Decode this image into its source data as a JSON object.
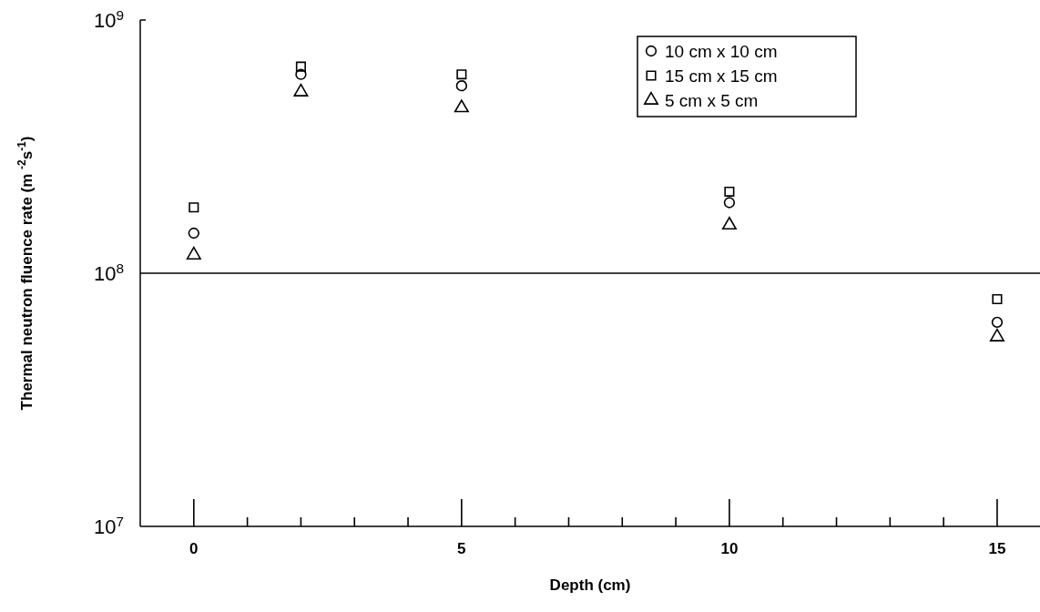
{
  "chart_data": {
    "type": "scatter",
    "xlabel": "Depth (cm)",
    "ylabel": "Thermal neutron fluence rate (m $^{-2}$s$^{-1}$)",
    "x": [
      0,
      2,
      5,
      10,
      15
    ],
    "series": [
      {
        "name": "10 cm x 10 cm",
        "color": "#000000",
        "marker": "circle",
        "values": [
          144000000,
          610000000,
          550000000,
          190000000,
          64000000
        ]
      },
      {
        "name": "15 cm x 15 cm",
        "color": "#000000",
        "marker": "square",
        "values": [
          182000000,
          655000000,
          610000000,
          210000000,
          79000000
        ]
      },
      {
        "name": "5 cm x 5 cm",
        "color": "#000000",
        "marker": "triangle",
        "values": [
          118000000,
          520000000,
          450000000,
          155000000,
          56000000
        ]
      }
    ],
    "log": "y",
    "xlim": [
      -1,
      15.8
    ],
    "ylim": [
      10000000,
      1000000000
    ],
    "xticks": [
      0,
      {
        "value": 1,
        "label": null
      },
      {
        "value": 2,
        "label": null
      },
      {
        "value": 3,
        "label": null
      },
      {
        "value": 4,
        "label": null
      },
      5,
      {
        "value": 6,
        "label": null
      },
      {
        "value": 7,
        "label": null
      },
      {
        "value": 8,
        "label": null
      },
      {
        "value": 9,
        "label": null
      },
      10,
      {
        "value": 11,
        "label": null
      },
      {
        "value": 12,
        "label": null
      },
      {
        "value": 13,
        "label": null
      },
      {
        "value": 14,
        "label": null
      },
      15
    ],
    "yticks": [
      {
        "value": 10000000,
        "label": "10$^{7}$"
      },
      {
        "value": 100000000,
        "label": "10$^{8}$"
      },
      {
        "value": 1000000000,
        "label": "10$^{9}$"
      }
    ],
    "ref_lines": [
      {
        "axis": "y",
        "value": 100000000,
        "color": "#000000"
      }
    ],
    "legend": "top right"
  }
}
